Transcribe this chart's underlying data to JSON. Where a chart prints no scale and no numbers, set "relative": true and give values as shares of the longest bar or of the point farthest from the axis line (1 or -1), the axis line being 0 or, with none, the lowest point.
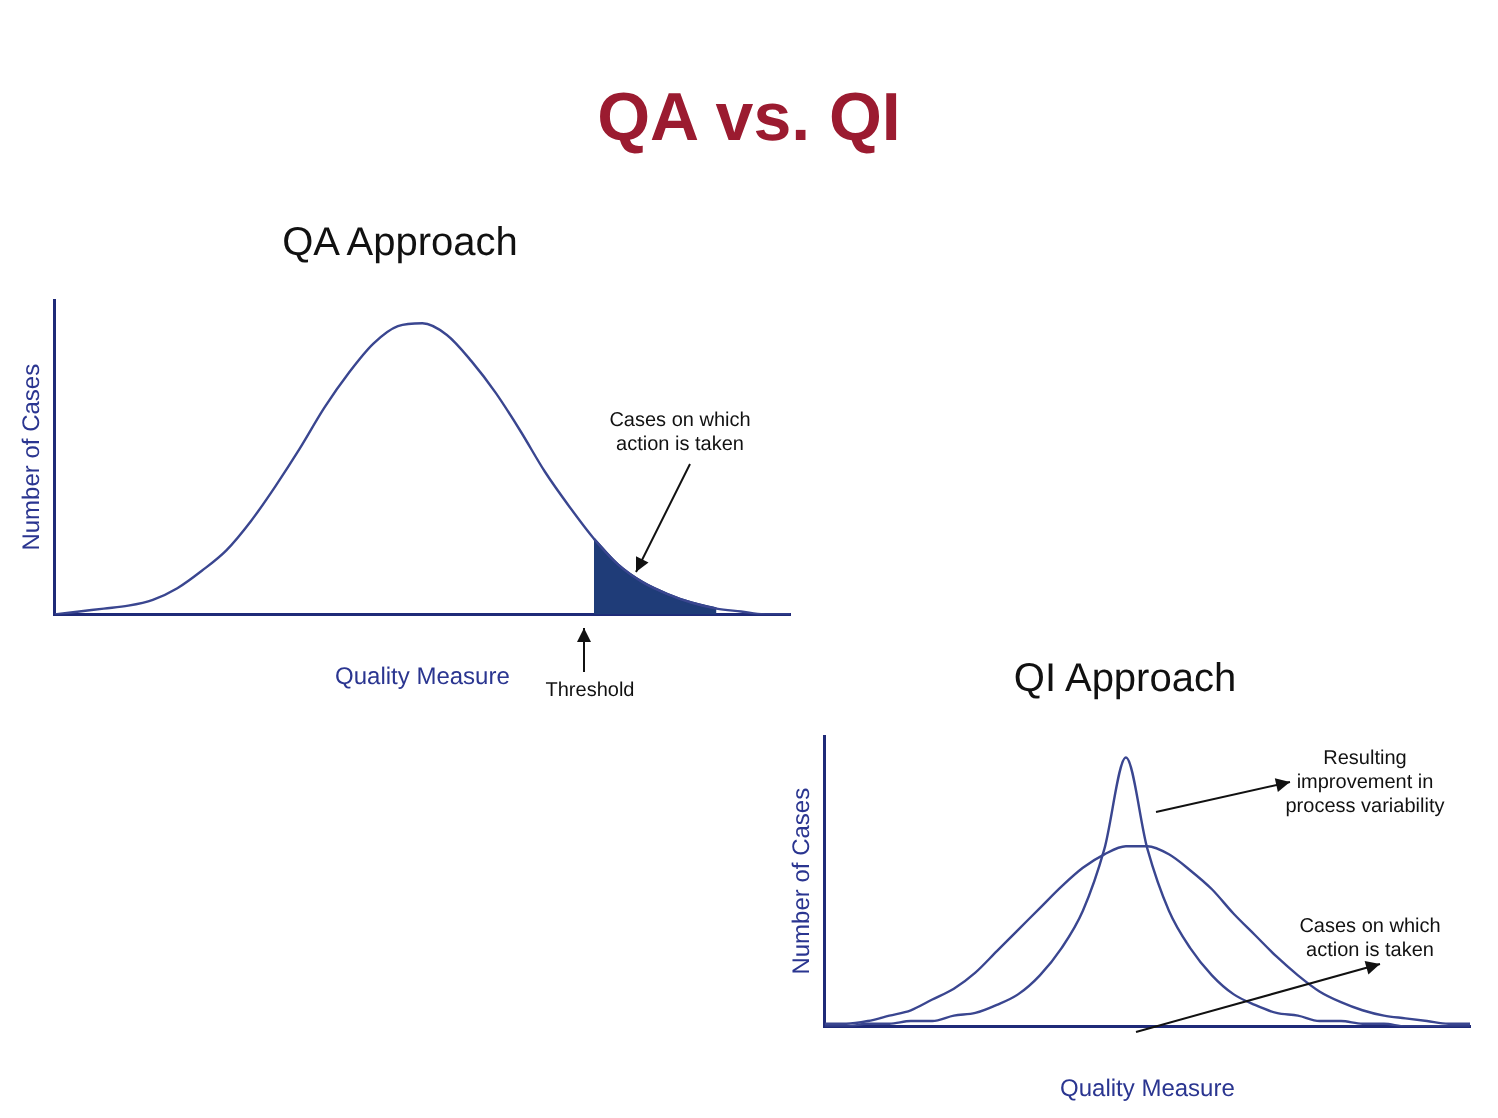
{
  "chart_data": [
    {
      "type": "line",
      "title": "QA vs. QI",
      "subtitle": "QA Approach",
      "xlabel": "Quality Measure",
      "ylabel": "Number of Cases",
      "relative": true,
      "legend": false,
      "grid": false,
      "marker": "none",
      "categories": [
        null,
        null,
        null,
        null,
        null,
        null,
        null,
        null,
        null,
        null,
        null,
        null,
        null,
        null,
        null,
        null,
        null,
        null,
        null,
        null,
        null,
        null,
        null,
        null,
        null,
        null,
        null,
        null,
        null,
        null,
        null
      ],
      "series": [
        {
          "color": "#3a4690",
          "values": [
            0,
            0.01,
            0.02,
            0.03,
            0.05,
            0.09,
            0.15,
            0.22,
            0.32,
            0.44,
            0.57,
            0.71,
            0.83,
            0.93,
            0.99,
            1,
            0.96,
            0.87,
            0.76,
            0.63,
            0.49,
            0.37,
            0.26,
            0.17,
            0.11,
            0.07,
            0.04,
            0.02,
            0.01,
            0,
            0
          ]
        },
        {
          "type": "area",
          "color": "#1f3c78",
          "values": [
            null,
            null,
            null,
            null,
            null,
            null,
            null,
            null,
            null,
            null,
            null,
            null,
            null,
            null,
            null,
            null,
            null,
            null,
            null,
            null,
            null,
            null,
            0.26,
            0.17,
            0.11,
            0.07,
            0.04,
            0.02,
            null,
            null,
            null
          ]
        }
      ],
      "annotations": [
        "Cases on which action is taken",
        "Threshold"
      ]
    },
    {
      "type": "line",
      "title": "QI Approach",
      "xlabel": "Quality Measure",
      "ylabel": "Number of Cases",
      "relative": true,
      "legend": false,
      "grid": false,
      "marker": "none",
      "categories": [
        null,
        null,
        null,
        null,
        null,
        null,
        null,
        null,
        null,
        null,
        null,
        null,
        null,
        null,
        null,
        null,
        null,
        null,
        null,
        null,
        null,
        null,
        null,
        null,
        null,
        null,
        null,
        null,
        null,
        null,
        null
      ],
      "series": [
        {
          "color": "#3a4690",
          "values": [
            0.01,
            0.01,
            0.02,
            0.04,
            0.06,
            0.1,
            0.14,
            0.2,
            0.28,
            0.36,
            0.44,
            0.52,
            0.59,
            0.64,
            0.67,
            0.67,
            0.64,
            0.58,
            0.51,
            0.42,
            0.34,
            0.26,
            0.19,
            0.13,
            0.09,
            0.06,
            0.04,
            0.03,
            0.02,
            0.01,
            0.01
          ]
        },
        {
          "color": "#3a4690",
          "values": [
            0,
            0,
            0.01,
            0.01,
            0.02,
            0.02,
            0.04,
            0.05,
            0.08,
            0.12,
            0.19,
            0.29,
            0.43,
            0.66,
            1,
            0.66,
            0.43,
            0.29,
            0.19,
            0.12,
            0.08,
            0.05,
            0.04,
            0.02,
            0.02,
            0.01,
            0.01,
            0,
            0,
            0,
            0
          ]
        }
      ],
      "annotations": [
        "Resulting improvement in process variability",
        "Cases on which action is taken"
      ]
    }
  ]
}
